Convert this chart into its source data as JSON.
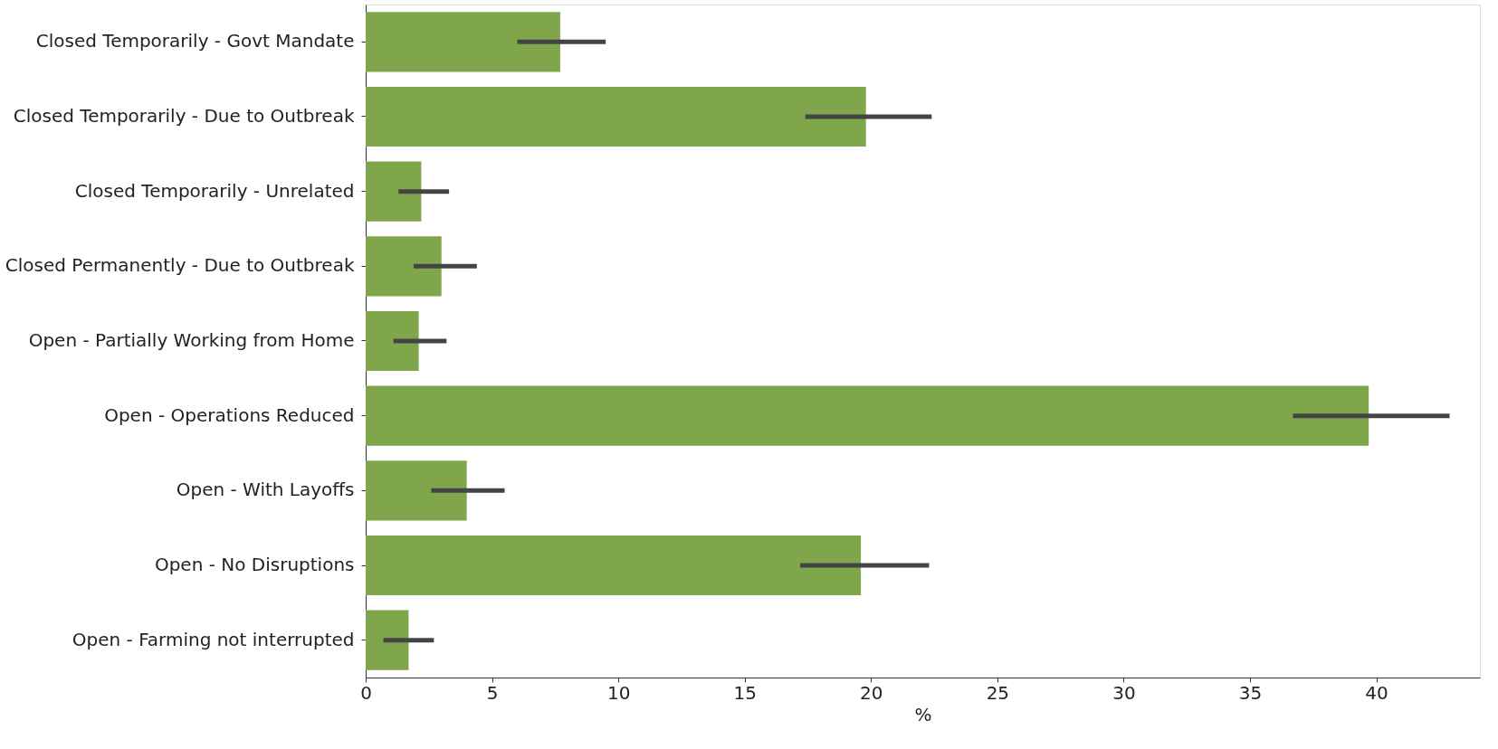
{
  "chart_data": {
    "type": "bar",
    "orientation": "horizontal",
    "xlabel": "%",
    "categories": [
      "Closed Temporarily - Govt Mandate",
      "Closed Temporarily - Due to Outbreak",
      "Closed Temporarily - Unrelated",
      "Closed Permanently - Due to Outbreak",
      "Open - Partially Working from Home",
      "Open - Operations Reduced",
      "Open - With Layoffs",
      "Open - No Disruptions",
      "Open - Farming not interrupted"
    ],
    "values": [
      7.7,
      19.8,
      2.2,
      3.0,
      2.1,
      39.7,
      4.0,
      19.6,
      1.7
    ],
    "errors": [
      [
        6.0,
        9.5
      ],
      [
        17.4,
        22.4
      ],
      [
        1.3,
        3.3
      ],
      [
        1.9,
        4.4
      ],
      [
        1.1,
        3.2
      ],
      [
        36.7,
        42.9
      ],
      [
        2.6,
        5.5
      ],
      [
        17.2,
        22.3
      ],
      [
        0.7,
        2.7
      ]
    ],
    "color": "#7fa64a",
    "xlim": [
      0,
      44.1
    ],
    "xticks": [
      0,
      5,
      10,
      15,
      20,
      25,
      30,
      35,
      40
    ],
    "grid": false
  }
}
